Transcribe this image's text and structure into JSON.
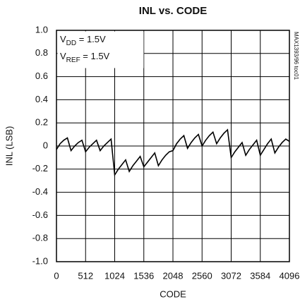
{
  "chart_data": {
    "type": "line",
    "title": "INL vs. CODE",
    "x_label": "CODE",
    "y_label": "INL (LSB)",
    "side_note": "MAX1393/96 toc01",
    "annotations": [
      {
        "text": "V",
        "sub": "DD",
        "rest": " = 1.5V"
      },
      {
        "text": "V",
        "sub": "REF",
        "rest": " = 1.5V"
      }
    ],
    "xlim": [
      0,
      4096
    ],
    "xticks": [
      0,
      512,
      1024,
      1536,
      2048,
      2560,
      3072,
      3584,
      4096
    ],
    "ylim": [
      -1,
      1
    ],
    "yticks": [
      {
        "value": -1,
        "label": "-1.0"
      },
      -0.8,
      -0.6,
      -0.4,
      -0.2,
      0,
      0.2,
      0.4,
      0.6,
      0.8,
      {
        "value": 1,
        "label": "1.0"
      }
    ],
    "grid": true,
    "series": [
      {
        "color": "#000000",
        "x": [
          0,
          64,
          128,
          192,
          256,
          320,
          384,
          448,
          512,
          576,
          640,
          704,
          768,
          832,
          896,
          960,
          1024,
          1088,
          1152,
          1216,
          1280,
          1344,
          1408,
          1472,
          1536,
          1600,
          1664,
          1728,
          1792,
          1856,
          1920,
          1984,
          2048,
          2112,
          2176,
          2240,
          2304,
          2368,
          2432,
          2496,
          2560,
          2624,
          2688,
          2752,
          2816,
          2880,
          2944,
          3008,
          3072,
          3136,
          3200,
          3264,
          3328,
          3392,
          3456,
          3520,
          3584,
          3648,
          3712,
          3776,
          3840,
          3904,
          3968,
          4032,
          4096
        ],
        "values": [
          -0.03,
          0.02,
          0.05,
          0.07,
          -0.04,
          0.0,
          0.03,
          0.05,
          -0.05,
          -0.01,
          0.02,
          0.05,
          -0.04,
          0.0,
          0.03,
          0.06,
          -0.25,
          -0.2,
          -0.16,
          -0.12,
          -0.22,
          -0.17,
          -0.13,
          -0.09,
          -0.18,
          -0.14,
          -0.1,
          -0.06,
          -0.17,
          -0.12,
          -0.08,
          -0.05,
          -0.04,
          0.02,
          0.06,
          0.09,
          -0.02,
          0.03,
          0.07,
          0.1,
          0.0,
          0.05,
          0.09,
          0.12,
          0.02,
          0.07,
          0.11,
          0.14,
          -0.1,
          -0.05,
          -0.01,
          0.03,
          -0.08,
          -0.03,
          0.01,
          0.05,
          -0.08,
          -0.03,
          0.02,
          0.06,
          -0.06,
          -0.01,
          0.03,
          0.06,
          0.04
        ]
      }
    ]
  }
}
